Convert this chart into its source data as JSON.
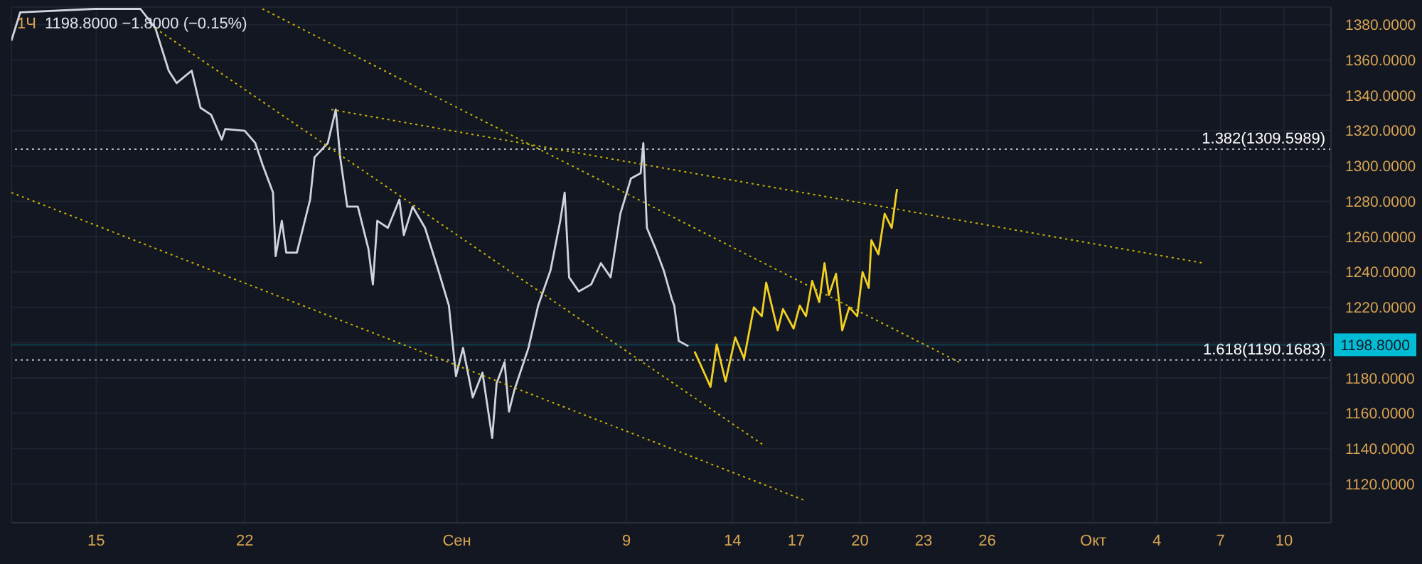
{
  "chart_data": {
    "type": "line",
    "title": "1Ч",
    "subtitle": "1198.8000  −1.8000 (−0.15%)",
    "xlim": [
      "--08-11",
      "--10-12T05:00"
    ],
    "xticks": [
      {
        "value": "--08-15",
        "label": "15"
      },
      {
        "value": "--08-22",
        "label": "22"
      },
      {
        "value": "--09-01",
        "label": "Сен"
      },
      {
        "value": "--09-09",
        "label": "9"
      },
      {
        "value": "--09-14",
        "label": "14"
      },
      {
        "value": "--09-17",
        "label": "17"
      },
      {
        "value": "--09-20",
        "label": "20"
      },
      {
        "value": "--09-23",
        "label": "23"
      },
      {
        "value": "--09-26",
        "label": "26"
      },
      {
        "value": "--10-01",
        "label": "Окт"
      },
      {
        "value": "--10-04",
        "label": "4"
      },
      {
        "value": "--10-07",
        "label": "7"
      },
      {
        "value": "--10-10",
        "label": "10"
      }
    ],
    "ylim": [
      1098,
      1390
    ],
    "yticks": [
      {
        "value": 1120,
        "label": "1120.0000"
      },
      {
        "value": 1140,
        "label": "1140.0000"
      },
      {
        "value": 1160,
        "label": "1160.0000"
      },
      {
        "value": 1180,
        "label": "1180.0000"
      },
      {
        "value": 1200,
        "label": null
      },
      {
        "value": 1220,
        "label": "1220.0000"
      },
      {
        "value": 1240,
        "label": "1240.0000"
      },
      {
        "value": 1260,
        "label": "1260.0000"
      },
      {
        "value": 1280,
        "label": "1280.0000"
      },
      {
        "value": 1300,
        "label": "1300.0000"
      },
      {
        "value": 1320,
        "label": "1320.0000"
      },
      {
        "value": 1340,
        "label": "1340.0000"
      },
      {
        "value": 1360,
        "label": "1360.0000"
      },
      {
        "value": 1380,
        "label": "1380.0000"
      }
    ],
    "grid": true,
    "marker": "none",
    "ref_lines": [
      {
        "axis": "y",
        "value": 1309.5989,
        "label": "1.382(1309.5989)",
        "color": "#b2b5be",
        "line_style": "dotted"
      },
      {
        "axis": "y",
        "value": 1190.1683,
        "label": "1.618(1190.1683)",
        "color": "#b2b5be",
        "line_style": "dotted"
      },
      {
        "axis": "y",
        "value": 1198.8,
        "label": "1198.8000",
        "color": "#00bcd4",
        "line_style": "solid"
      }
    ],
    "series": [
      {
        "color": "#d1d4dc",
        "line_style": "solid",
        "x": [
          "--08-11T00:00",
          "--08-11T10:00",
          "--08-14T22:00",
          "--08-17T02:00",
          "--08-17T19:00",
          "--08-18T10:00",
          "--08-18T19:00",
          "--08-19T12:00",
          "--08-19T22:00",
          "--08-20T10:00",
          "--08-20T22:00",
          "--08-21T02:00",
          "--08-22T00:00",
          "--08-22T12:00",
          "--08-22T20:00",
          "--08-23T08:00",
          "--08-23T11:00",
          "--08-23T18:00",
          "--08-23T23:00",
          "--08-24T11:00",
          "--08-25T02:00",
          "--08-25T07:00",
          "--08-25T22:00",
          "--08-26T07:00",
          "--08-26T12:00",
          "--08-26T20:00",
          "--08-27T08:00",
          "--08-27T20:00",
          "--08-28T01:00",
          "--08-28T06:00",
          "--08-28T18:00",
          "--08-29T07:00",
          "--08-29T12:00",
          "--08-29T22:00",
          "--08-30T12:00",
          "--08-31T03:00",
          "--08-31T15:00",
          "--08-31T23:00",
          "--09-01T07:00",
          "--09-01T18:00",
          "--09-02T05:00",
          "--09-02T16:00",
          "--09-02T21:00",
          "--09-03T06:00",
          "--09-03T11:00",
          "--09-03T17:00",
          "--09-04T09:00",
          "--09-04T20:00",
          "--09-05T10:00",
          "--09-05T21:00",
          "--09-06T02:00",
          "--09-06T07:00",
          "--09-06T18:00",
          "--09-07T08:00",
          "--09-07T19:00",
          "--09-08T06:00",
          "--09-08T17:00",
          "--09-09T05:00",
          "--09-09T16:00",
          "--09-09T19:00",
          "--09-09T23:00",
          "--09-10T09:00",
          "--09-10T18:00",
          "--09-11T03:00",
          "--09-11T06:00",
          "--09-11T11:00",
          "--09-11T22:00"
        ],
        "values": [
          1371,
          1387,
          1389,
          1389,
          1378,
          1354,
          1347,
          1354,
          1333,
          1329,
          1315,
          1321,
          1320,
          1313,
          1301,
          1285,
          1249,
          1269,
          1251,
          1251,
          1281,
          1305,
          1313,
          1332,
          1305,
          1277,
          1277,
          1253,
          1233,
          1269,
          1265,
          1281,
          1261,
          1277,
          1265,
          1241,
          1221,
          1181,
          1197,
          1169,
          1183,
          1146,
          1177,
          1189,
          1161,
          1173,
          1197,
          1221,
          1241,
          1269,
          1285,
          1237,
          1229,
          1233,
          1245,
          1237,
          1273,
          1293,
          1296,
          1313,
          1265,
          1253,
          1241,
          1225,
          1221,
          1201,
          1198
        ]
      },
      {
        "color": "#f0d020",
        "line_style": "solid",
        "x": [
          "--09-12T05:00",
          "--09-12T23:00",
          "--09-13T06:00",
          "--09-13T16:00",
          "--09-14T03:00",
          "--09-14T13:00",
          "--09-15T00:00",
          "--09-15T09:00",
          "--09-15T14:00",
          "--09-16T03:00",
          "--09-16T09:00",
          "--09-16T21:00",
          "--09-17T04:00",
          "--09-17T11:00",
          "--09-17T18:00",
          "--09-18T02:00",
          "--09-18T08:00",
          "--09-18T13:00",
          "--09-18T21:00",
          "--09-19T04:00",
          "--09-19T12:00",
          "--09-19T21:00",
          "--09-20T03:00",
          "--09-20T10:00",
          "--09-20T13:00",
          "--09-20T21:00",
          "--09-21T04:00",
          "--09-21T12:00",
          "--09-21T18:00"
        ],
        "values": [
          1195,
          1175,
          1199,
          1178,
          1203,
          1191,
          1220,
          1215,
          1234,
          1207,
          1219,
          1208,
          1221,
          1215,
          1235,
          1223,
          1245,
          1227,
          1239,
          1207,
          1220,
          1215,
          1240,
          1231,
          1258,
          1250,
          1273,
          1265,
          1287
        ]
      },
      {
        "color": "#c8b400",
        "line_style": "dotted",
        "x": [
          "--08-26T02:00",
          "--10-06T05:00"
        ],
        "values": [
          1332,
          1245
        ]
      },
      {
        "color": "#c8b400",
        "line_style": "dotted",
        "x": [
          "--08-22T20:00",
          "--09-24T20:00"
        ],
        "values": [
          1389,
          1188
        ]
      },
      {
        "color": "#c8b400",
        "line_style": "dotted",
        "x": [
          "--08-17T19:00",
          "--09-15T11:00"
        ],
        "values": [
          1378,
          1142
        ]
      },
      {
        "color": "#c8b400",
        "line_style": "dotted",
        "x": [
          "--08-11T00:00",
          "--09-17T08:00"
        ],
        "values": [
          1285,
          1111
        ]
      }
    ]
  }
}
